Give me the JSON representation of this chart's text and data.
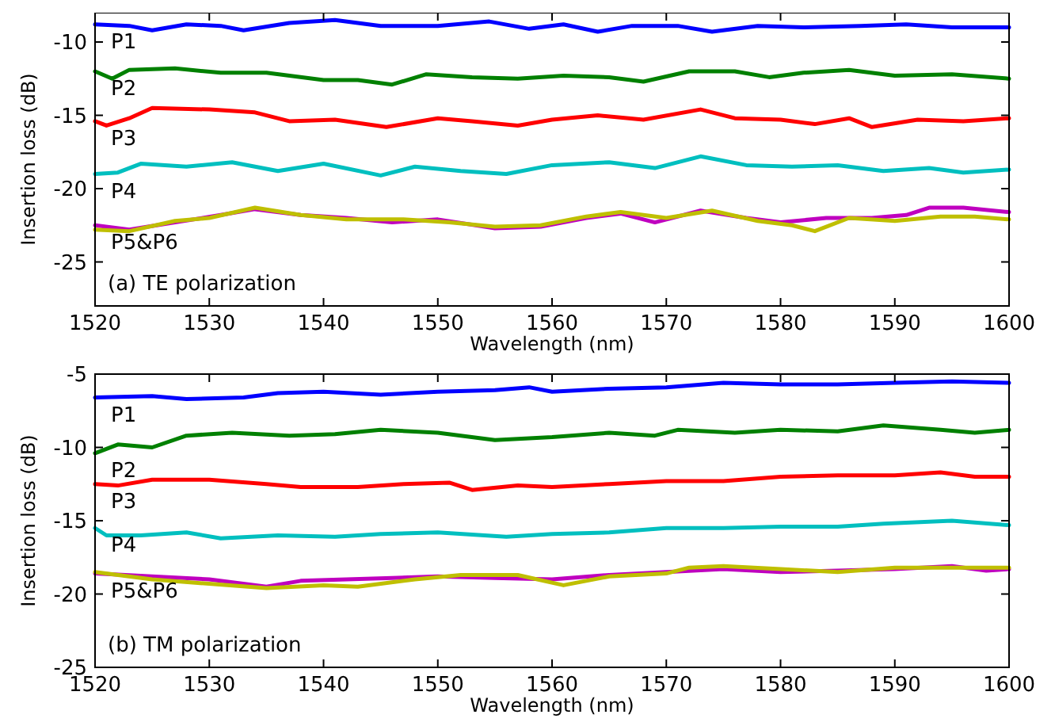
{
  "chart_data": [
    {
      "type": "line",
      "xlabel": "Wavelength (nm)",
      "ylabel": "Insertion loss (dB)",
      "xlim": [
        1520,
        1600
      ],
      "xticks": [
        1520,
        1530,
        1540,
        1550,
        1560,
        1570,
        1580,
        1590,
        1600
      ],
      "ylim": [
        -28,
        -8
      ],
      "yticks": [
        -25,
        -20,
        -15,
        -10
      ],
      "grid": false,
      "marker": "none",
      "line_style": "solid",
      "series": [
        {
          "color": "#0000ff",
          "x": [
            1520,
            1523,
            1525,
            1528,
            1531,
            1533,
            1537,
            1541,
            1545,
            1550,
            1554.5,
            1558,
            1561,
            1564,
            1567,
            1571,
            1574,
            1578,
            1582,
            1587,
            1591,
            1595,
            1600
          ],
          "values": [
            -8.8,
            -8.9,
            -9.2,
            -8.8,
            -8.9,
            -9.2,
            -8.7,
            -8.5,
            -8.9,
            -8.9,
            -8.6,
            -9.1,
            -8.8,
            -9.3,
            -8.9,
            -8.9,
            -9.3,
            -8.9,
            -9.0,
            -8.9,
            -8.8,
            -9.0,
            -9.0
          ]
        },
        {
          "color": "#008000",
          "x": [
            1520,
            1521.5,
            1523,
            1527,
            1531,
            1535,
            1540,
            1543,
            1546,
            1549,
            1553,
            1557,
            1561,
            1565,
            1568,
            1572,
            1576,
            1579,
            1582,
            1586,
            1590,
            1595,
            1600
          ],
          "values": [
            -12.0,
            -12.5,
            -11.9,
            -11.8,
            -12.1,
            -12.1,
            -12.6,
            -12.6,
            -12.9,
            -12.2,
            -12.4,
            -12.5,
            -12.3,
            -12.4,
            -12.7,
            -12.0,
            -12.0,
            -12.4,
            -12.1,
            -11.9,
            -12.3,
            -12.2,
            -12.5
          ]
        },
        {
          "color": "#ff0000",
          "x": [
            1520,
            1521,
            1523,
            1525,
            1530,
            1534,
            1537,
            1541,
            1545.5,
            1550,
            1553,
            1557,
            1560,
            1564,
            1568,
            1573,
            1576,
            1580,
            1583,
            1586,
            1588,
            1592,
            1596,
            1600
          ],
          "values": [
            -15.4,
            -15.7,
            -15.2,
            -14.5,
            -14.6,
            -14.8,
            -15.4,
            -15.3,
            -15.8,
            -15.2,
            -15.4,
            -15.7,
            -15.3,
            -15.0,
            -15.3,
            -14.6,
            -15.2,
            -15.3,
            -15.6,
            -15.2,
            -15.8,
            -15.3,
            -15.4,
            -15.2
          ]
        },
        {
          "color": "#00bfbf",
          "x": [
            1520,
            1522,
            1524,
            1528,
            1532,
            1536,
            1540,
            1545,
            1548,
            1552,
            1556,
            1560,
            1565,
            1569,
            1573,
            1577,
            1581,
            1585,
            1589,
            1593,
            1596,
            1600
          ],
          "values": [
            -19.0,
            -18.9,
            -18.3,
            -18.5,
            -18.2,
            -18.8,
            -18.3,
            -19.1,
            -18.5,
            -18.8,
            -19.0,
            -18.4,
            -18.2,
            -18.6,
            -17.8,
            -18.4,
            -18.5,
            -18.4,
            -18.8,
            -18.6,
            -18.9,
            -18.7
          ]
        },
        {
          "color": "#bf00bf",
          "x": [
            1520,
            1523,
            1527,
            1531,
            1534,
            1538,
            1542,
            1546,
            1550,
            1555,
            1559,
            1563,
            1566,
            1569,
            1573,
            1577,
            1580,
            1584,
            1588,
            1591,
            1593,
            1596,
            1600
          ],
          "values": [
            -22.5,
            -22.8,
            -22.3,
            -21.8,
            -21.4,
            -21.8,
            -22.0,
            -22.3,
            -22.1,
            -22.7,
            -22.6,
            -22.0,
            -21.7,
            -22.3,
            -21.5,
            -22.0,
            -22.3,
            -22.0,
            -22.0,
            -21.8,
            -21.3,
            -21.3,
            -21.6
          ]
        },
        {
          "color": "#bfbf00",
          "x": [
            1520,
            1523,
            1527,
            1530,
            1534,
            1538,
            1542,
            1547,
            1551,
            1555,
            1559,
            1563,
            1566,
            1570,
            1574,
            1578,
            1581,
            1583,
            1586,
            1590,
            1594,
            1597,
            1600
          ],
          "values": [
            -22.8,
            -22.9,
            -22.2,
            -22.0,
            -21.3,
            -21.8,
            -22.1,
            -22.1,
            -22.3,
            -22.6,
            -22.5,
            -21.9,
            -21.6,
            -22.0,
            -21.5,
            -22.2,
            -22.5,
            -22.9,
            -22.0,
            -22.2,
            -21.9,
            -21.9,
            -22.1
          ]
        }
      ],
      "annotations": [
        "(a) TE polarization",
        "P1",
        "P2",
        "P3",
        "P4",
        "P5&P6"
      ]
    },
    {
      "type": "line",
      "xlabel": "Wavelength (nm)",
      "ylabel": "Insertion loss (dB)",
      "xlim": [
        1520,
        1600
      ],
      "xticks": [
        1520,
        1530,
        1540,
        1550,
        1560,
        1570,
        1580,
        1590,
        1600
      ],
      "ylim": [
        -25,
        -5
      ],
      "yticks": [
        -25,
        -20,
        -15,
        -10,
        -5
      ],
      "grid": false,
      "marker": "none",
      "line_style": "solid",
      "series": [
        {
          "color": "#0000ff",
          "x": [
            1520,
            1525,
            1528,
            1533,
            1536,
            1540,
            1545,
            1550,
            1555,
            1558,
            1560,
            1565,
            1570,
            1575,
            1580,
            1585,
            1590,
            1595,
            1600
          ],
          "values": [
            -6.6,
            -6.5,
            -6.7,
            -6.6,
            -6.3,
            -6.2,
            -6.4,
            -6.2,
            -6.1,
            -5.9,
            -6.2,
            -6.0,
            -5.9,
            -5.6,
            -5.7,
            -5.7,
            -5.6,
            -5.5,
            -5.6
          ]
        },
        {
          "color": "#008000",
          "x": [
            1520,
            1522,
            1525,
            1528,
            1532,
            1537,
            1541,
            1545,
            1550,
            1555,
            1560,
            1565,
            1569,
            1571,
            1576,
            1580,
            1585,
            1589,
            1594,
            1597,
            1600
          ],
          "values": [
            -10.4,
            -9.8,
            -10.0,
            -9.2,
            -9.0,
            -9.2,
            -9.1,
            -8.8,
            -9.0,
            -9.5,
            -9.3,
            -9.0,
            -9.2,
            -8.8,
            -9.0,
            -8.8,
            -8.9,
            -8.5,
            -8.8,
            -9.0,
            -8.8
          ]
        },
        {
          "color": "#ff0000",
          "x": [
            1520,
            1522,
            1525,
            1530,
            1535,
            1538,
            1543,
            1547,
            1551,
            1553,
            1557,
            1560,
            1565,
            1570,
            1575,
            1580,
            1585,
            1590,
            1594,
            1597,
            1600
          ],
          "values": [
            -12.5,
            -12.6,
            -12.2,
            -12.2,
            -12.5,
            -12.7,
            -12.7,
            -12.5,
            -12.4,
            -12.9,
            -12.6,
            -12.7,
            -12.5,
            -12.3,
            -12.3,
            -12.0,
            -11.9,
            -11.9,
            -11.7,
            -12.0,
            -12.0
          ]
        },
        {
          "color": "#00bfbf",
          "x": [
            1520,
            1521,
            1524,
            1528,
            1531,
            1536,
            1541,
            1545,
            1550,
            1556,
            1560,
            1565,
            1570,
            1575,
            1580,
            1585,
            1589,
            1595,
            1600
          ],
          "values": [
            -15.5,
            -16.0,
            -16.0,
            -15.8,
            -16.2,
            -16.0,
            -16.1,
            -15.9,
            -15.8,
            -16.1,
            -15.9,
            -15.8,
            -15.5,
            -15.5,
            -15.4,
            -15.4,
            -15.2,
            -15.0,
            -15.3
          ]
        },
        {
          "color": "#bf00bf",
          "x": [
            1520,
            1525,
            1530,
            1535,
            1538,
            1542,
            1546,
            1550,
            1555,
            1560,
            1565,
            1570,
            1575,
            1580,
            1585,
            1590,
            1595,
            1598,
            1600
          ],
          "values": [
            -18.6,
            -18.8,
            -19.0,
            -19.5,
            -19.1,
            -19.0,
            -18.9,
            -18.8,
            -18.9,
            -19.0,
            -18.7,
            -18.5,
            -18.3,
            -18.5,
            -18.4,
            -18.3,
            -18.1,
            -18.4,
            -18.3
          ]
        },
        {
          "color": "#bfbf00",
          "x": [
            1520,
            1525,
            1530,
            1535,
            1540,
            1543,
            1548,
            1552,
            1557,
            1561,
            1565,
            1570,
            1572,
            1575,
            1580,
            1585,
            1590,
            1595,
            1600
          ],
          "values": [
            -18.5,
            -19.0,
            -19.3,
            -19.6,
            -19.4,
            -19.5,
            -19.0,
            -18.7,
            -18.7,
            -19.4,
            -18.8,
            -18.6,
            -18.2,
            -18.1,
            -18.3,
            -18.5,
            -18.2,
            -18.2,
            -18.2
          ]
        }
      ],
      "annotations": [
        "(b) TM polarization",
        "P1",
        "P2",
        "P3",
        "P4",
        "P5&P6"
      ]
    }
  ]
}
